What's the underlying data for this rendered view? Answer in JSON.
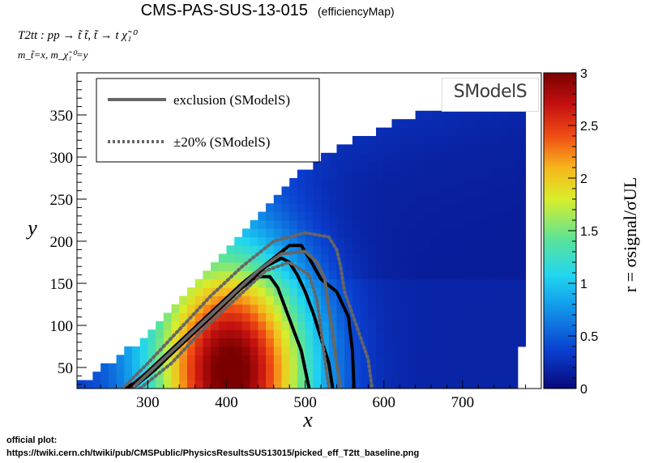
{
  "chart_data": {
    "type": "heatmap",
    "title": "CMS-PAS-SUS-13-015",
    "subtitle": "(efficiencyMap)",
    "process_text": "T2tt : pp → t̃ t̃, t̃ → t χ̃₁⁰",
    "mass_text": "m_t̃=x, m_χ̃₁⁰=y",
    "xlabel": "x",
    "ylabel": "y",
    "zlabel": "r = σsignal/σUL",
    "xlim": [
      210,
      800
    ],
    "ylim": [
      25,
      400
    ],
    "zlim": [
      0,
      3
    ],
    "x_ticks": [
      300,
      400,
      500,
      600,
      700
    ],
    "y_ticks": [
      50,
      100,
      150,
      200,
      250,
      300,
      350
    ],
    "z_ticks": [
      0,
      0.5,
      1,
      1.5,
      2,
      2.5,
      3
    ],
    "grid": false,
    "legend": {
      "placement": "top-left",
      "entries": [
        {
          "label": "exclusion (SModelS)",
          "style": "solid",
          "color": "#666666"
        },
        {
          "label": "±20% (SModelS)",
          "style": "dotted",
          "color": "#666666"
        }
      ]
    },
    "region_edge": {
      "x": [
        210,
        300,
        400,
        480,
        545,
        640,
        800
      ],
      "y": [
        25,
        85,
        185,
        265,
        310,
        345,
        390
      ]
    },
    "peak": {
      "x": 400,
      "y": 40,
      "r": 2.9
    },
    "curves": [
      {
        "name": "exclusion (official)",
        "style": "solid",
        "color": "#000000",
        "x": [
          275,
          300,
          340,
          380,
          420,
          460,
          480,
          495,
          505,
          520,
          540,
          555,
          560,
          562
        ],
        "y": [
          25,
          45,
          80,
          115,
          150,
          180,
          195,
          195,
          180,
          155,
          140,
          110,
          70,
          25
        ]
      },
      {
        "name": "exclusion (official) lower",
        "style": "solid",
        "color": "#000000",
        "x": [
          270,
          300,
          340,
          380,
          420,
          450,
          470,
          480,
          490,
          500,
          510,
          520,
          530,
          535
        ],
        "y": [
          25,
          40,
          75,
          110,
          145,
          170,
          180,
          175,
          160,
          140,
          115,
          85,
          55,
          25
        ]
      },
      {
        "name": "exclusion (official) -1σ",
        "style": "solid",
        "color": "#000000",
        "x": [
          280,
          310,
          350,
          390,
          420,
          440,
          455,
          465,
          475,
          485,
          495,
          505
        ],
        "y": [
          25,
          48,
          85,
          120,
          145,
          158,
          158,
          145,
          120,
          95,
          70,
          25
        ]
      },
      {
        "name": "exclusion (SModelS)",
        "style": "solid",
        "color": "#666666",
        "x": [
          280,
          320,
          360,
          400,
          440,
          470,
          500,
          515,
          525,
          530,
          535,
          540,
          545
        ],
        "y": [
          25,
          60,
          95,
          130,
          165,
          185,
          188,
          175,
          155,
          120,
          90,
          55,
          25
        ]
      },
      {
        "name": "+20% (SModelS)",
        "style": "dotted",
        "color": "#666666",
        "x": [
          268,
          300,
          340,
          380,
          420,
          460,
          500,
          530,
          540,
          545,
          550,
          565,
          580,
          585
        ],
        "y": [
          25,
          55,
          95,
          135,
          170,
          200,
          210,
          205,
          190,
          170,
          140,
          100,
          60,
          25
        ]
      },
      {
        "name": "-20% (SModelS)",
        "style": "dotted",
        "color": "#666666",
        "x": [
          290,
          330,
          370,
          410,
          450,
          480,
          505,
          515,
          520,
          525,
          530
        ],
        "y": [
          25,
          55,
          95,
          130,
          165,
          175,
          160,
          130,
          95,
          60,
          25
        ]
      }
    ]
  },
  "logo": {
    "text": "SModelS"
  },
  "footer": {
    "line1": "official plot:",
    "line2": "https://twiki.cern.ch/twiki/pub/CMSPublic/PhysicsResultsSUS13015/picked_eff_T2tt_baseline.png"
  }
}
